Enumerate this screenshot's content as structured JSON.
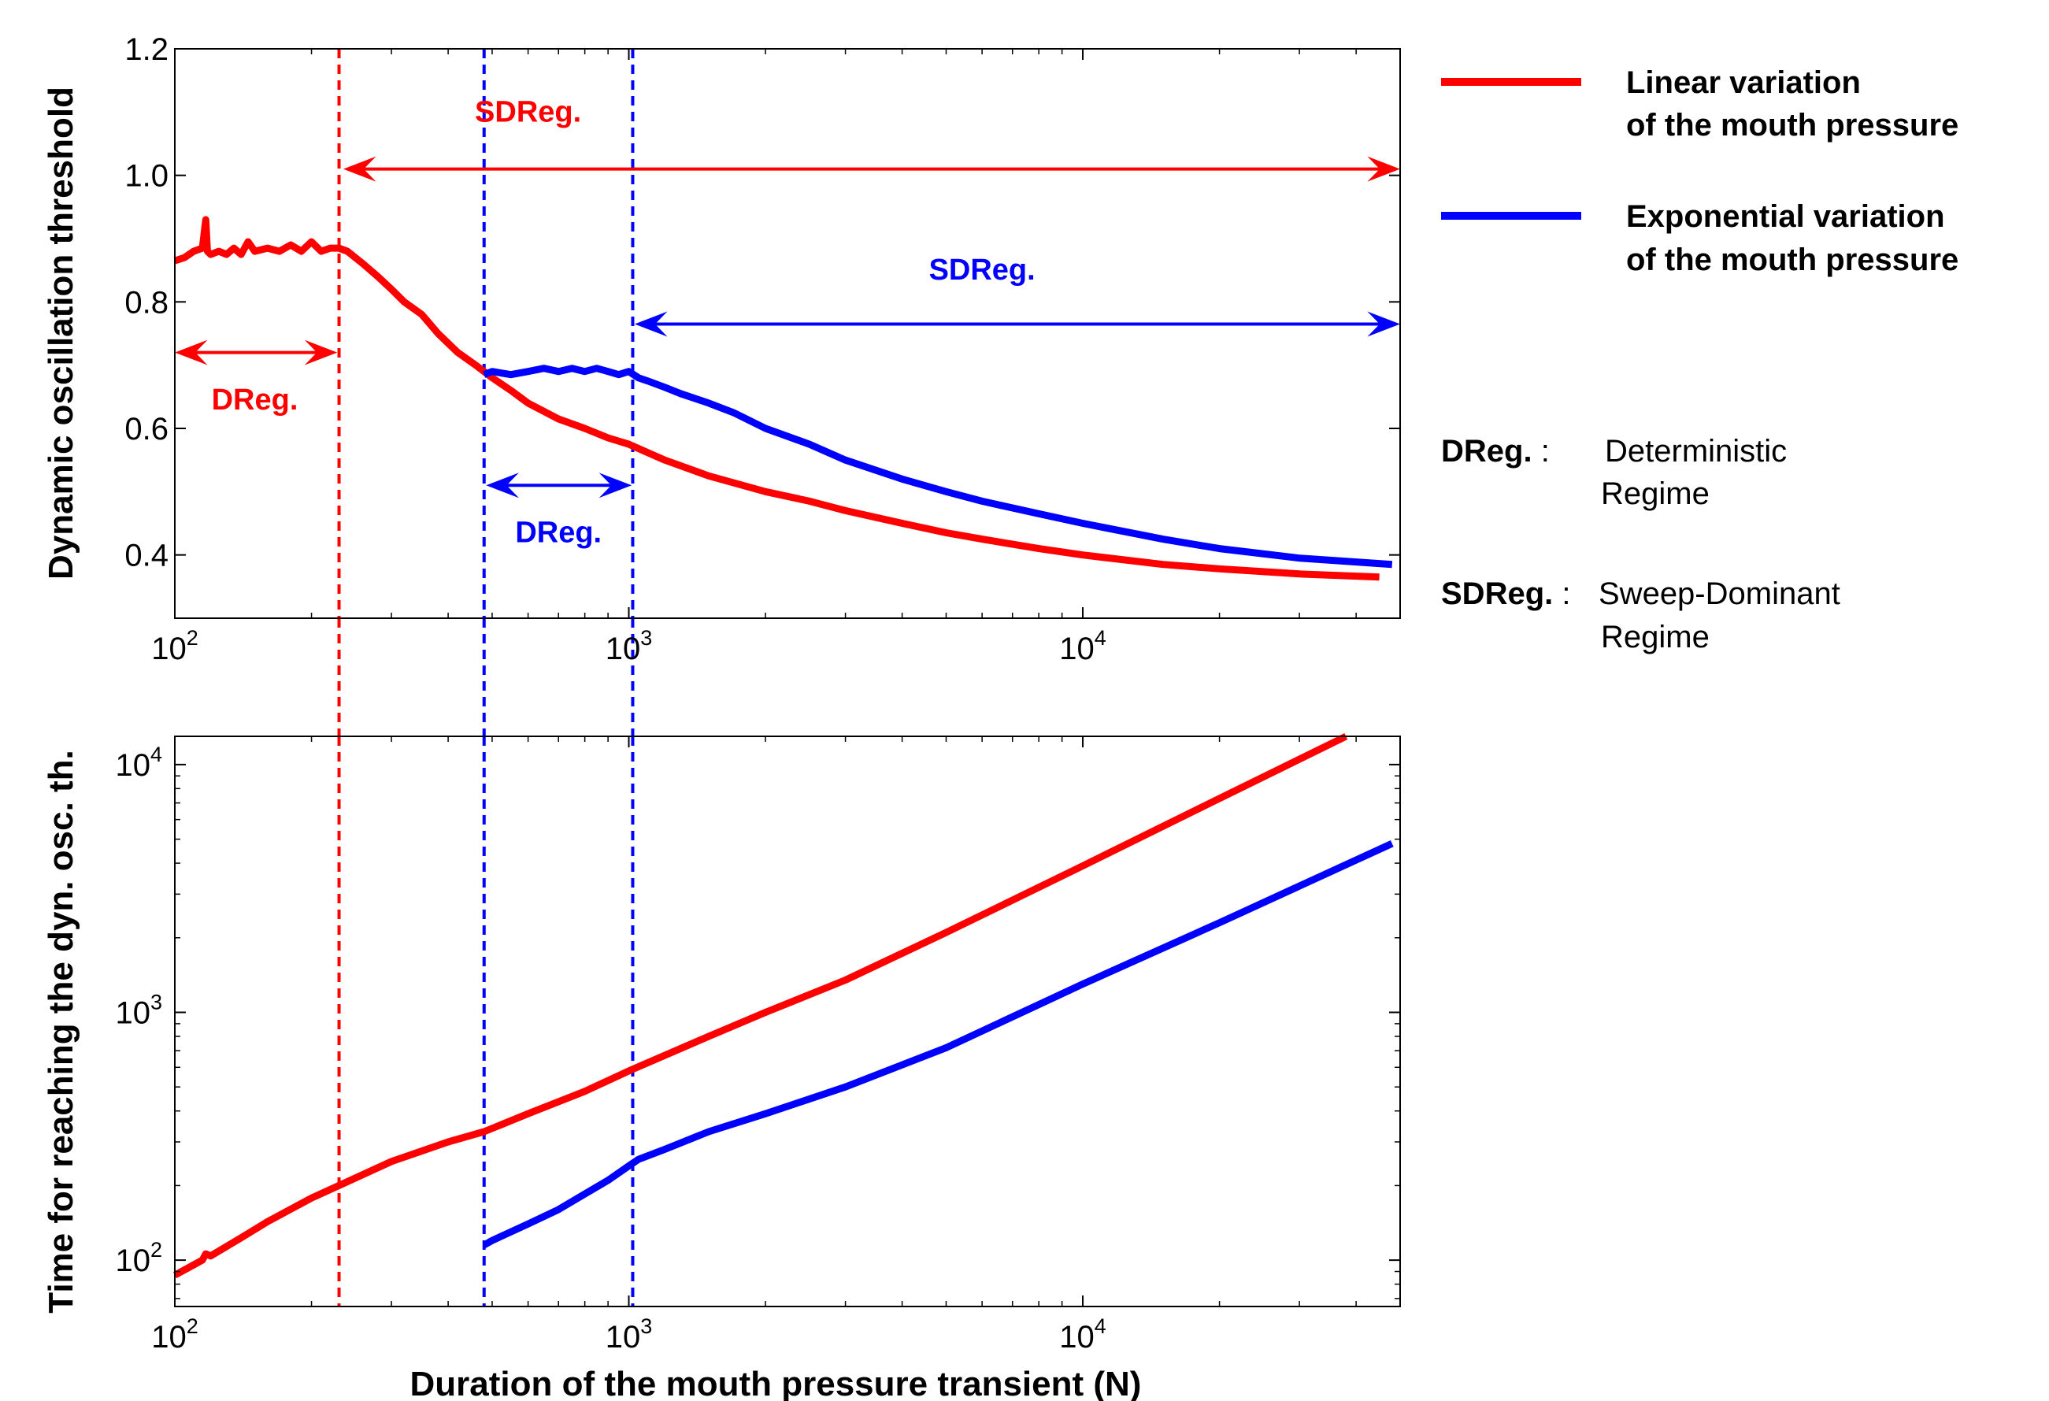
{
  "colors": {
    "linear": "#ff0000",
    "exponential": "#0000ff"
  },
  "legend": [
    {
      "line1": "Linear variation",
      "line2": "of the mouth pressure",
      "color": "#ff0000"
    },
    {
      "line1": "Exponential variation",
      "line2": "of the mouth pressure",
      "color": "#0000ff"
    }
  ],
  "notes": {
    "dreg_key": "DReg.",
    "dreg_sep": " :",
    "dreg_def1": "Deterministic",
    "dreg_def2": "Regime",
    "sdreg_key": "SDReg.",
    "sdreg_sep": " :",
    "sdreg_def1": "Sweep-Dominant",
    "sdreg_def2": "Regime"
  },
  "chart_data": [
    {
      "type": "line",
      "panel": "top",
      "xscale": "log",
      "xlim": [
        100,
        50000
      ],
      "ylim": [
        0.3,
        1.2
      ],
      "yticks": [
        0.4,
        0.6,
        0.8,
        1.0,
        1.2
      ],
      "ytick_labels": [
        "0.4",
        "0.6",
        "0.8",
        "1.0",
        "1.2"
      ],
      "xticks": [
        {
          "value": 100,
          "base": "10",
          "exp": "2"
        },
        {
          "value": 1000,
          "base": "10",
          "exp": "3"
        },
        {
          "value": 10000,
          "base": "10",
          "exp": "4"
        }
      ],
      "ylabel": "Dynamic oscillation threshold",
      "xlabel": "",
      "series": [
        {
          "color": "#ff0000",
          "x": [
            100,
            105,
            110,
            115,
            117,
            118,
            120,
            125,
            130,
            135,
            140,
            145,
            150,
            160,
            170,
            180,
            190,
            200,
            210,
            220,
            230,
            240,
            260,
            280,
            300,
            320,
            350,
            380,
            420,
            460,
            500,
            550,
            600,
            700,
            800,
            900,
            1000,
            1200,
            1500,
            2000,
            2500,
            3000,
            4000,
            5000,
            6000,
            8000,
            10000,
            15000,
            20000,
            30000,
            45000
          ],
          "y": [
            0.865,
            0.87,
            0.88,
            0.885,
            0.93,
            0.88,
            0.875,
            0.88,
            0.875,
            0.885,
            0.875,
            0.895,
            0.88,
            0.885,
            0.88,
            0.89,
            0.88,
            0.895,
            0.88,
            0.885,
            0.885,
            0.88,
            0.86,
            0.84,
            0.82,
            0.8,
            0.78,
            0.75,
            0.72,
            0.7,
            0.68,
            0.66,
            0.64,
            0.615,
            0.6,
            0.585,
            0.575,
            0.55,
            0.525,
            0.5,
            0.485,
            0.47,
            0.45,
            0.435,
            0.425,
            0.41,
            0.4,
            0.385,
            0.378,
            0.37,
            0.365
          ]
        },
        {
          "color": "#0000ff",
          "x": [
            480,
            500,
            550,
            600,
            650,
            700,
            750,
            800,
            850,
            900,
            950,
            1000,
            1050,
            1100,
            1200,
            1300,
            1500,
            1700,
            2000,
            2500,
            3000,
            4000,
            5000,
            6000,
            8000,
            10000,
            15000,
            20000,
            30000,
            48000
          ],
          "y": [
            0.685,
            0.69,
            0.685,
            0.69,
            0.695,
            0.69,
            0.695,
            0.69,
            0.695,
            0.69,
            0.685,
            0.69,
            0.68,
            0.675,
            0.665,
            0.655,
            0.64,
            0.625,
            0.6,
            0.575,
            0.55,
            0.52,
            0.5,
            0.485,
            0.465,
            0.45,
            0.425,
            0.41,
            0.395,
            0.385
          ]
        }
      ],
      "vlines": [
        {
          "x": 230,
          "color": "#ff0000"
        },
        {
          "x": 480,
          "color": "#0000ff"
        },
        {
          "x": 1020,
          "color": "#0000ff"
        }
      ],
      "annotations": [
        {
          "label": "SDReg.",
          "color": "#ff0000",
          "x1": 235,
          "x2": 50000,
          "y": 1.01,
          "text_x": 600,
          "text_y": 1.085
        },
        {
          "label": "SDReg.",
          "color": "#0000ff",
          "x1": 1030,
          "x2": 50000,
          "y": 0.765,
          "text_x": 6000,
          "text_y": 0.835
        },
        {
          "label": "DReg.",
          "color": "#ff0000",
          "x1": 100,
          "x2": 228,
          "y": 0.72,
          "text_x": 150,
          "text_y": 0.63
        },
        {
          "label": "DReg.",
          "color": "#0000ff",
          "x1": 485,
          "x2": 1015,
          "y": 0.51,
          "text_x": 700,
          "text_y": 0.42
        }
      ]
    },
    {
      "type": "line",
      "panel": "bottom",
      "xscale": "log",
      "yscale": "log",
      "xlim": [
        100,
        50000
      ],
      "ylim": [
        65,
        13000
      ],
      "yticks": [
        {
          "value": 100,
          "base": "10",
          "exp": "2"
        },
        {
          "value": 1000,
          "base": "10",
          "exp": "3"
        },
        {
          "value": 10000,
          "base": "10",
          "exp": "4"
        }
      ],
      "xticks": [
        {
          "value": 100,
          "base": "10",
          "exp": "2"
        },
        {
          "value": 1000,
          "base": "10",
          "exp": "3"
        },
        {
          "value": 10000,
          "base": "10",
          "exp": "4"
        }
      ],
      "ylabel": "Time for reaching the dyn. osc. th.",
      "xlabel": "Duration of the mouth pressure transient (N)",
      "series": [
        {
          "color": "#ff0000",
          "x": [
            100,
            115,
            117,
            120,
            140,
            160,
            200,
            230,
            300,
            400,
            480,
            600,
            800,
            1000,
            1500,
            2000,
            3000,
            5000,
            10000,
            20000,
            38000
          ],
          "y": [
            87,
            100,
            106,
            104,
            123,
            143,
            178,
            200,
            250,
            300,
            330,
            390,
            480,
            580,
            800,
            1000,
            1350,
            2100,
            3900,
            7300,
            13000
          ]
        },
        {
          "color": "#0000ff",
          "x": [
            480,
            500,
            600,
            700,
            800,
            900,
            1000,
            1050,
            1200,
            1500,
            2000,
            3000,
            5000,
            10000,
            20000,
            48000
          ],
          "y": [
            115,
            120,
            140,
            160,
            185,
            210,
            240,
            255,
            280,
            330,
            390,
            500,
            720,
            1300,
            2300,
            4800
          ]
        }
      ],
      "vlines": [
        {
          "x": 230,
          "color": "#ff0000"
        },
        {
          "x": 480,
          "color": "#0000ff"
        },
        {
          "x": 1020,
          "color": "#0000ff"
        }
      ]
    }
  ]
}
